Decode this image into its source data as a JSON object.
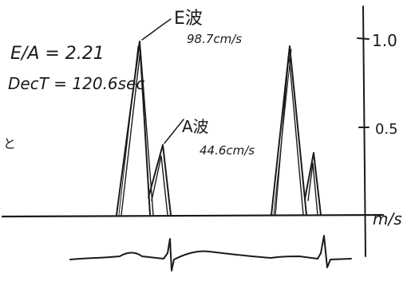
{
  "annotations": {
    "ea_ratio": "E/A = 2.21",
    "dect": "DecT = 120.6sec",
    "left_fragment": "と",
    "e_wave_name": "E波",
    "e_wave_value": "98.7cm/s",
    "a_wave_name": "A波",
    "a_wave_value": "44.6cm/s"
  },
  "axis": {
    "unit": "m/s",
    "ticks": [
      "1.0",
      "0.5"
    ]
  }
}
